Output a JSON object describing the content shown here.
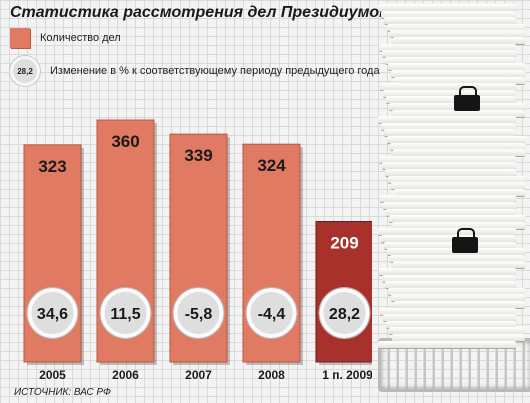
{
  "title": "Статистика рассмотрения дел Президиумом ВАС РФ",
  "legend": {
    "count_label": "Количество дел",
    "change_sample": "28,2",
    "change_label": "Изменение в % к соответствующему периоду предыдущего года"
  },
  "source": "ИСТОЧНИК: ВАС РФ",
  "colors": {
    "bar": "#e07a62",
    "bar_highlight": "#a8312c",
    "ring_fill": "#dedede"
  },
  "illustration": {
    "icons": [
      "paper-stack-icon",
      "binder-clip-icon",
      "wire-tray-icon"
    ]
  },
  "chart_data": {
    "type": "bar",
    "title": "Статистика рассмотрения дел Президиумом ВАС РФ",
    "categories": [
      "2005",
      "2006",
      "2007",
      "2008",
      "1 п. 2009"
    ],
    "series": [
      {
        "name": "Количество дел",
        "values": [
          323,
          360,
          339,
          324,
          209
        ],
        "labels": [
          "323",
          "360",
          "339",
          "324",
          "209"
        ]
      },
      {
        "name": "Изменение в % к соответствующему периоду предыдущего года",
        "values": [
          34.6,
          11.5,
          -5.8,
          -4.4,
          28.2
        ],
        "labels": [
          "34,6",
          "11,5",
          "-5,8",
          "-4,4",
          "28,2"
        ]
      }
    ],
    "highlight_index": 4,
    "ylim": [
      0,
      360
    ],
    "grid": true,
    "legend_position": "top-left",
    "xlabel": "",
    "ylabel": ""
  }
}
